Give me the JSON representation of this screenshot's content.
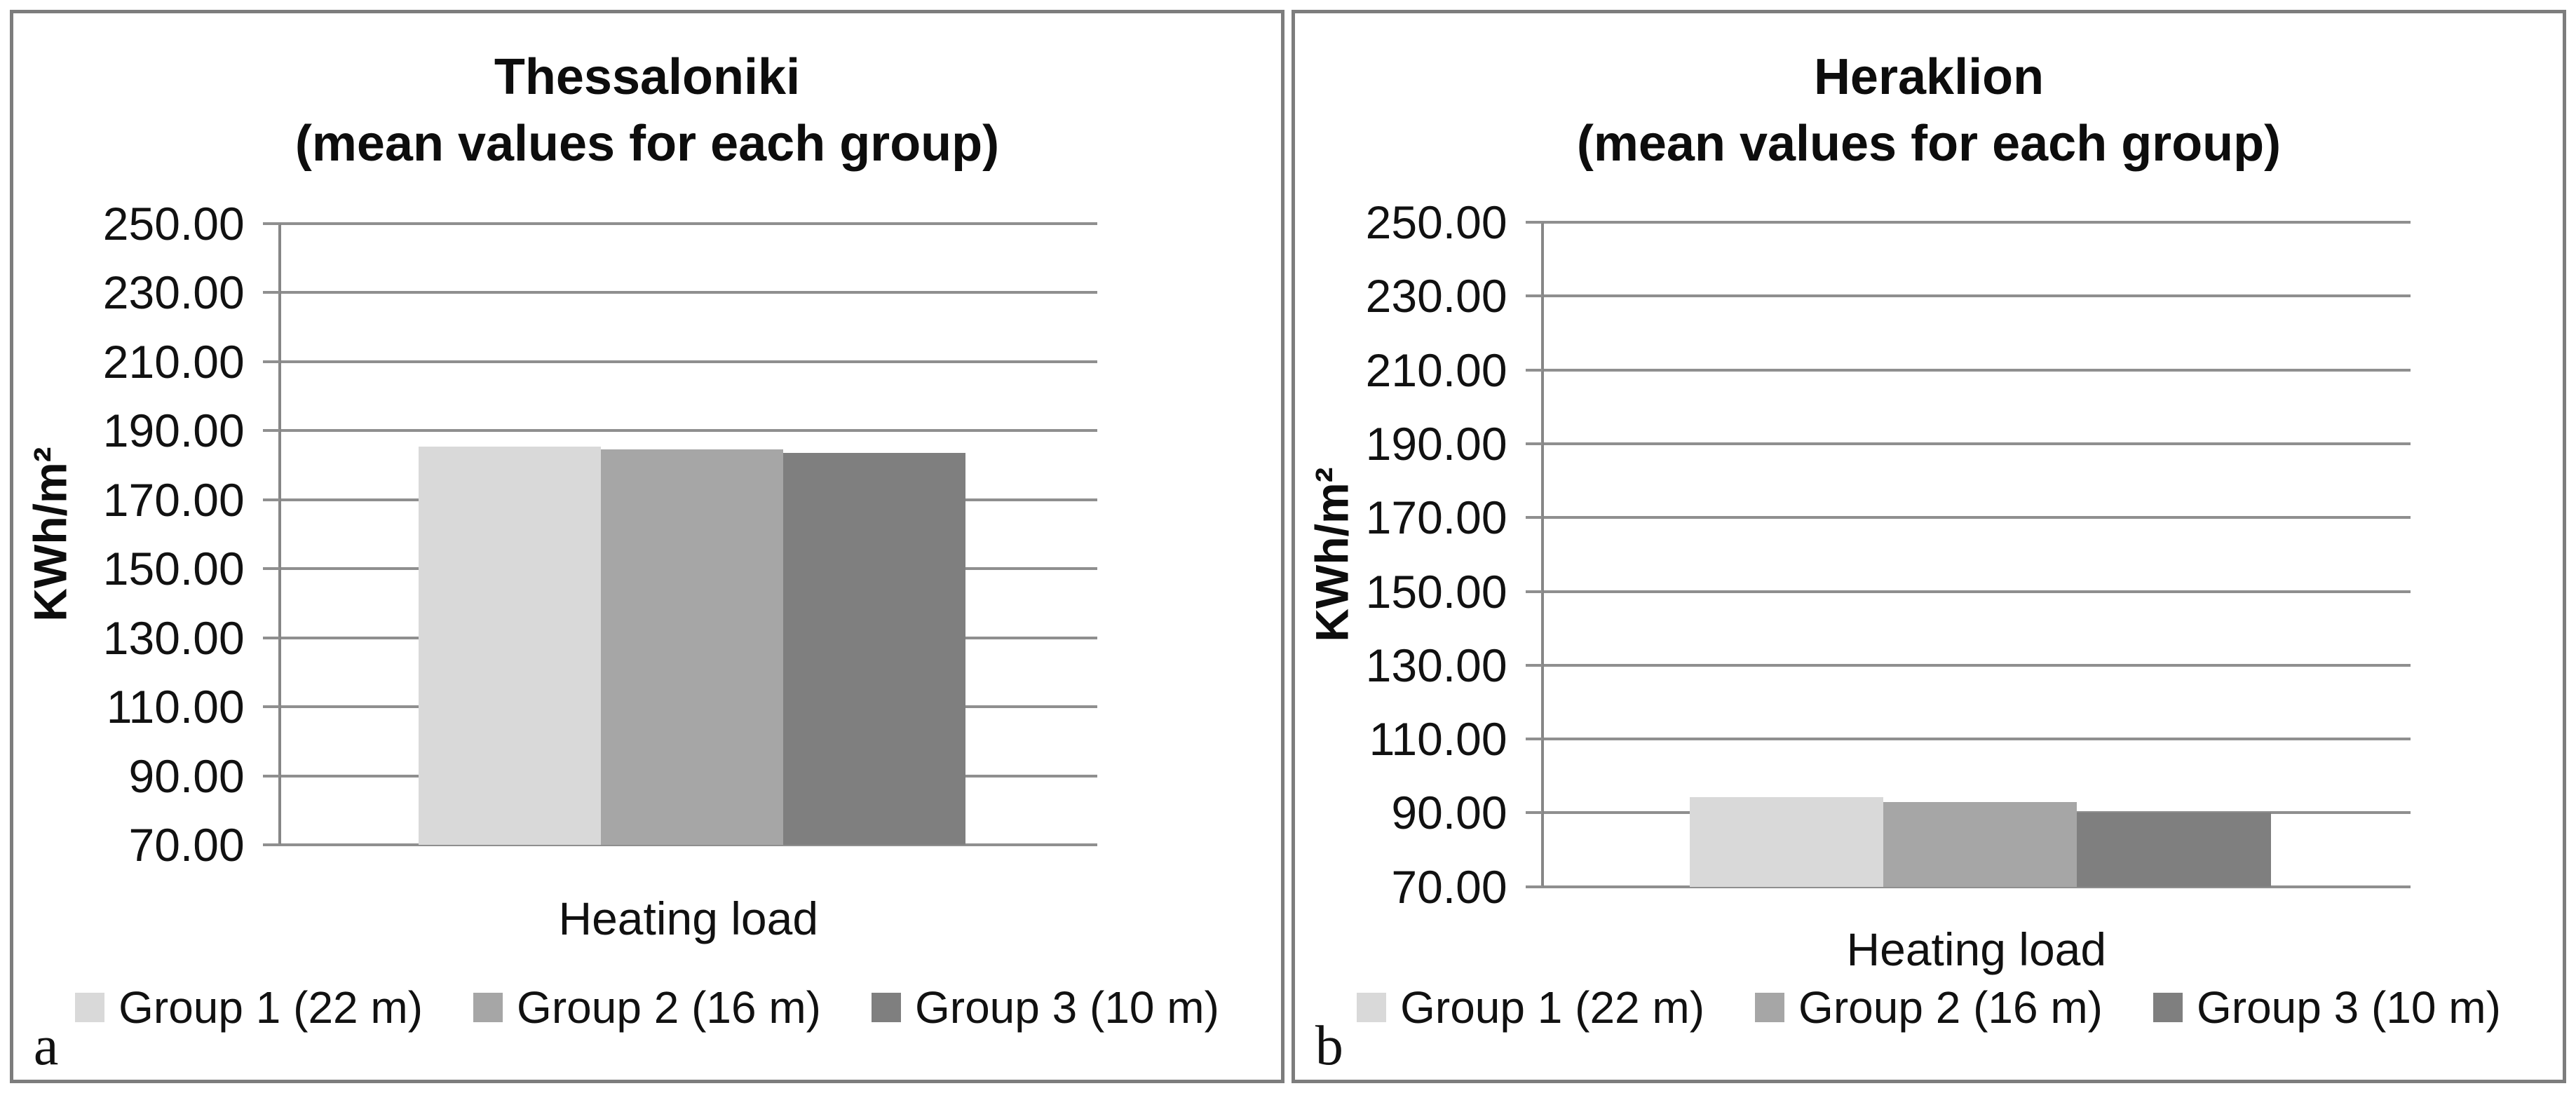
{
  "styles": {
    "gridline_color": "#8f8f8f",
    "axis_color": "#868686",
    "panel_border_color": "#7d7d7d",
    "text_color": "#111111",
    "background": "#ffffff"
  },
  "chart_data": [
    {
      "type": "bar",
      "panel_letter": "a",
      "title": "Thessaloniki",
      "subtitle": "(mean values for each group)",
      "ylabel": "KWh/m²",
      "xlabel": "Heating load",
      "ylim": [
        70,
        250
      ],
      "ytick_step": 20,
      "y_ticks": [
        "250.00",
        "230.00",
        "210.00",
        "190.00",
        "170.00",
        "150.00",
        "130.00",
        "110.00",
        "90.00",
        "70.00"
      ],
      "categories": [
        "Heating load"
      ],
      "grid": true,
      "legend_position": "bottom",
      "series": [
        {
          "name": "Group 1 (22 m)",
          "values": [
            185.4
          ],
          "color": "#d9d9d9"
        },
        {
          "name": "Group 2 (16 m)",
          "values": [
            184.6
          ],
          "color": "#a6a6a6"
        },
        {
          "name": "Group 3 (10 m)",
          "values": [
            183.6
          ],
          "color": "#7f7f7f"
        }
      ]
    },
    {
      "type": "bar",
      "panel_letter": "b",
      "title": "Heraklion",
      "subtitle": "(mean values for each group)",
      "ylabel": "KWh/m²",
      "xlabel": "Heating load",
      "ylim": [
        70,
        250
      ],
      "ytick_step": 20,
      "y_ticks": [
        "250.00",
        "230.00",
        "210.00",
        "190.00",
        "170.00",
        "150.00",
        "130.00",
        "110.00",
        "90.00",
        "70.00"
      ],
      "categories": [
        "Heating load"
      ],
      "grid": true,
      "legend_position": "bottom",
      "series": [
        {
          "name": "Group 1 (22 m)",
          "values": [
            94.3
          ],
          "color": "#d9d9d9"
        },
        {
          "name": "Group 2 (16 m)",
          "values": [
            92.9
          ],
          "color": "#a6a6a6"
        },
        {
          "name": "Group 3 (10 m)",
          "values": [
            90.0
          ],
          "color": "#7f7f7f"
        }
      ]
    }
  ]
}
